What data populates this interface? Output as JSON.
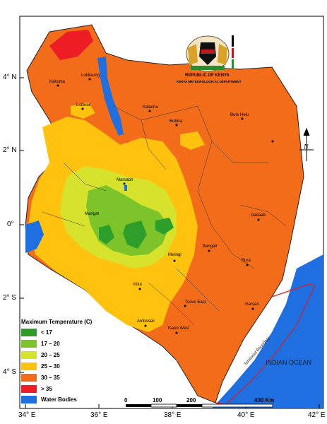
{
  "map": {
    "emblem": {
      "title": "REPUBLIC OF KENYA",
      "subtitle": "KENYA METEOROLOGICAL DEPARTMENT"
    },
    "latitude_ticks": [
      "4° N",
      "2° N",
      "0°",
      "2° S",
      "4° S"
    ],
    "longitude_ticks": [
      "34° E",
      "36° E",
      "38° E",
      "40° E",
      "42° E"
    ],
    "towns": [
      "Lokitaung",
      "Kakuma",
      "Lodwar",
      "Kalacha",
      "Bubisa",
      "Bute Helu",
      "Marsabit",
      "Marigat",
      "Dadaab",
      "Bangali",
      "Mwingi",
      "Bura",
      "Kitui",
      "Garsen",
      "Tsavo East",
      "Amboseli",
      "Tsavo West"
    ],
    "ocean_label": "INDIAN OCEAN",
    "boundary_label": "Territorial Boundary",
    "north_symbol": "N",
    "colors": {
      "water": "#1f6fe0",
      "lt17": "#2e9e2a",
      "t17_20": "#7dc42a",
      "t20_25": "#d6e22c",
      "t25_30": "#ffc20e",
      "t30_35": "#f26c1a",
      "gt35": "#ee1c24"
    }
  },
  "legend": {
    "title": "Maximum Temperature (C)",
    "items": [
      {
        "label": "< 17",
        "color": "#2e9e2a"
      },
      {
        "label": "17 – 20",
        "color": "#7dc42a"
      },
      {
        "label": "20 – 25",
        "color": "#d6e22c"
      },
      {
        "label": "25 – 30",
        "color": "#ffc20e"
      },
      {
        "label": "30 – 35",
        "color": "#f26c1a"
      },
      {
        "label": "> 35",
        "color": "#ee1c24"
      }
    ],
    "water_label": "Water Bodies",
    "water_color": "#1f6fe0"
  },
  "scale": {
    "labels": [
      "0",
      "100",
      "200",
      "400 Km"
    ]
  }
}
